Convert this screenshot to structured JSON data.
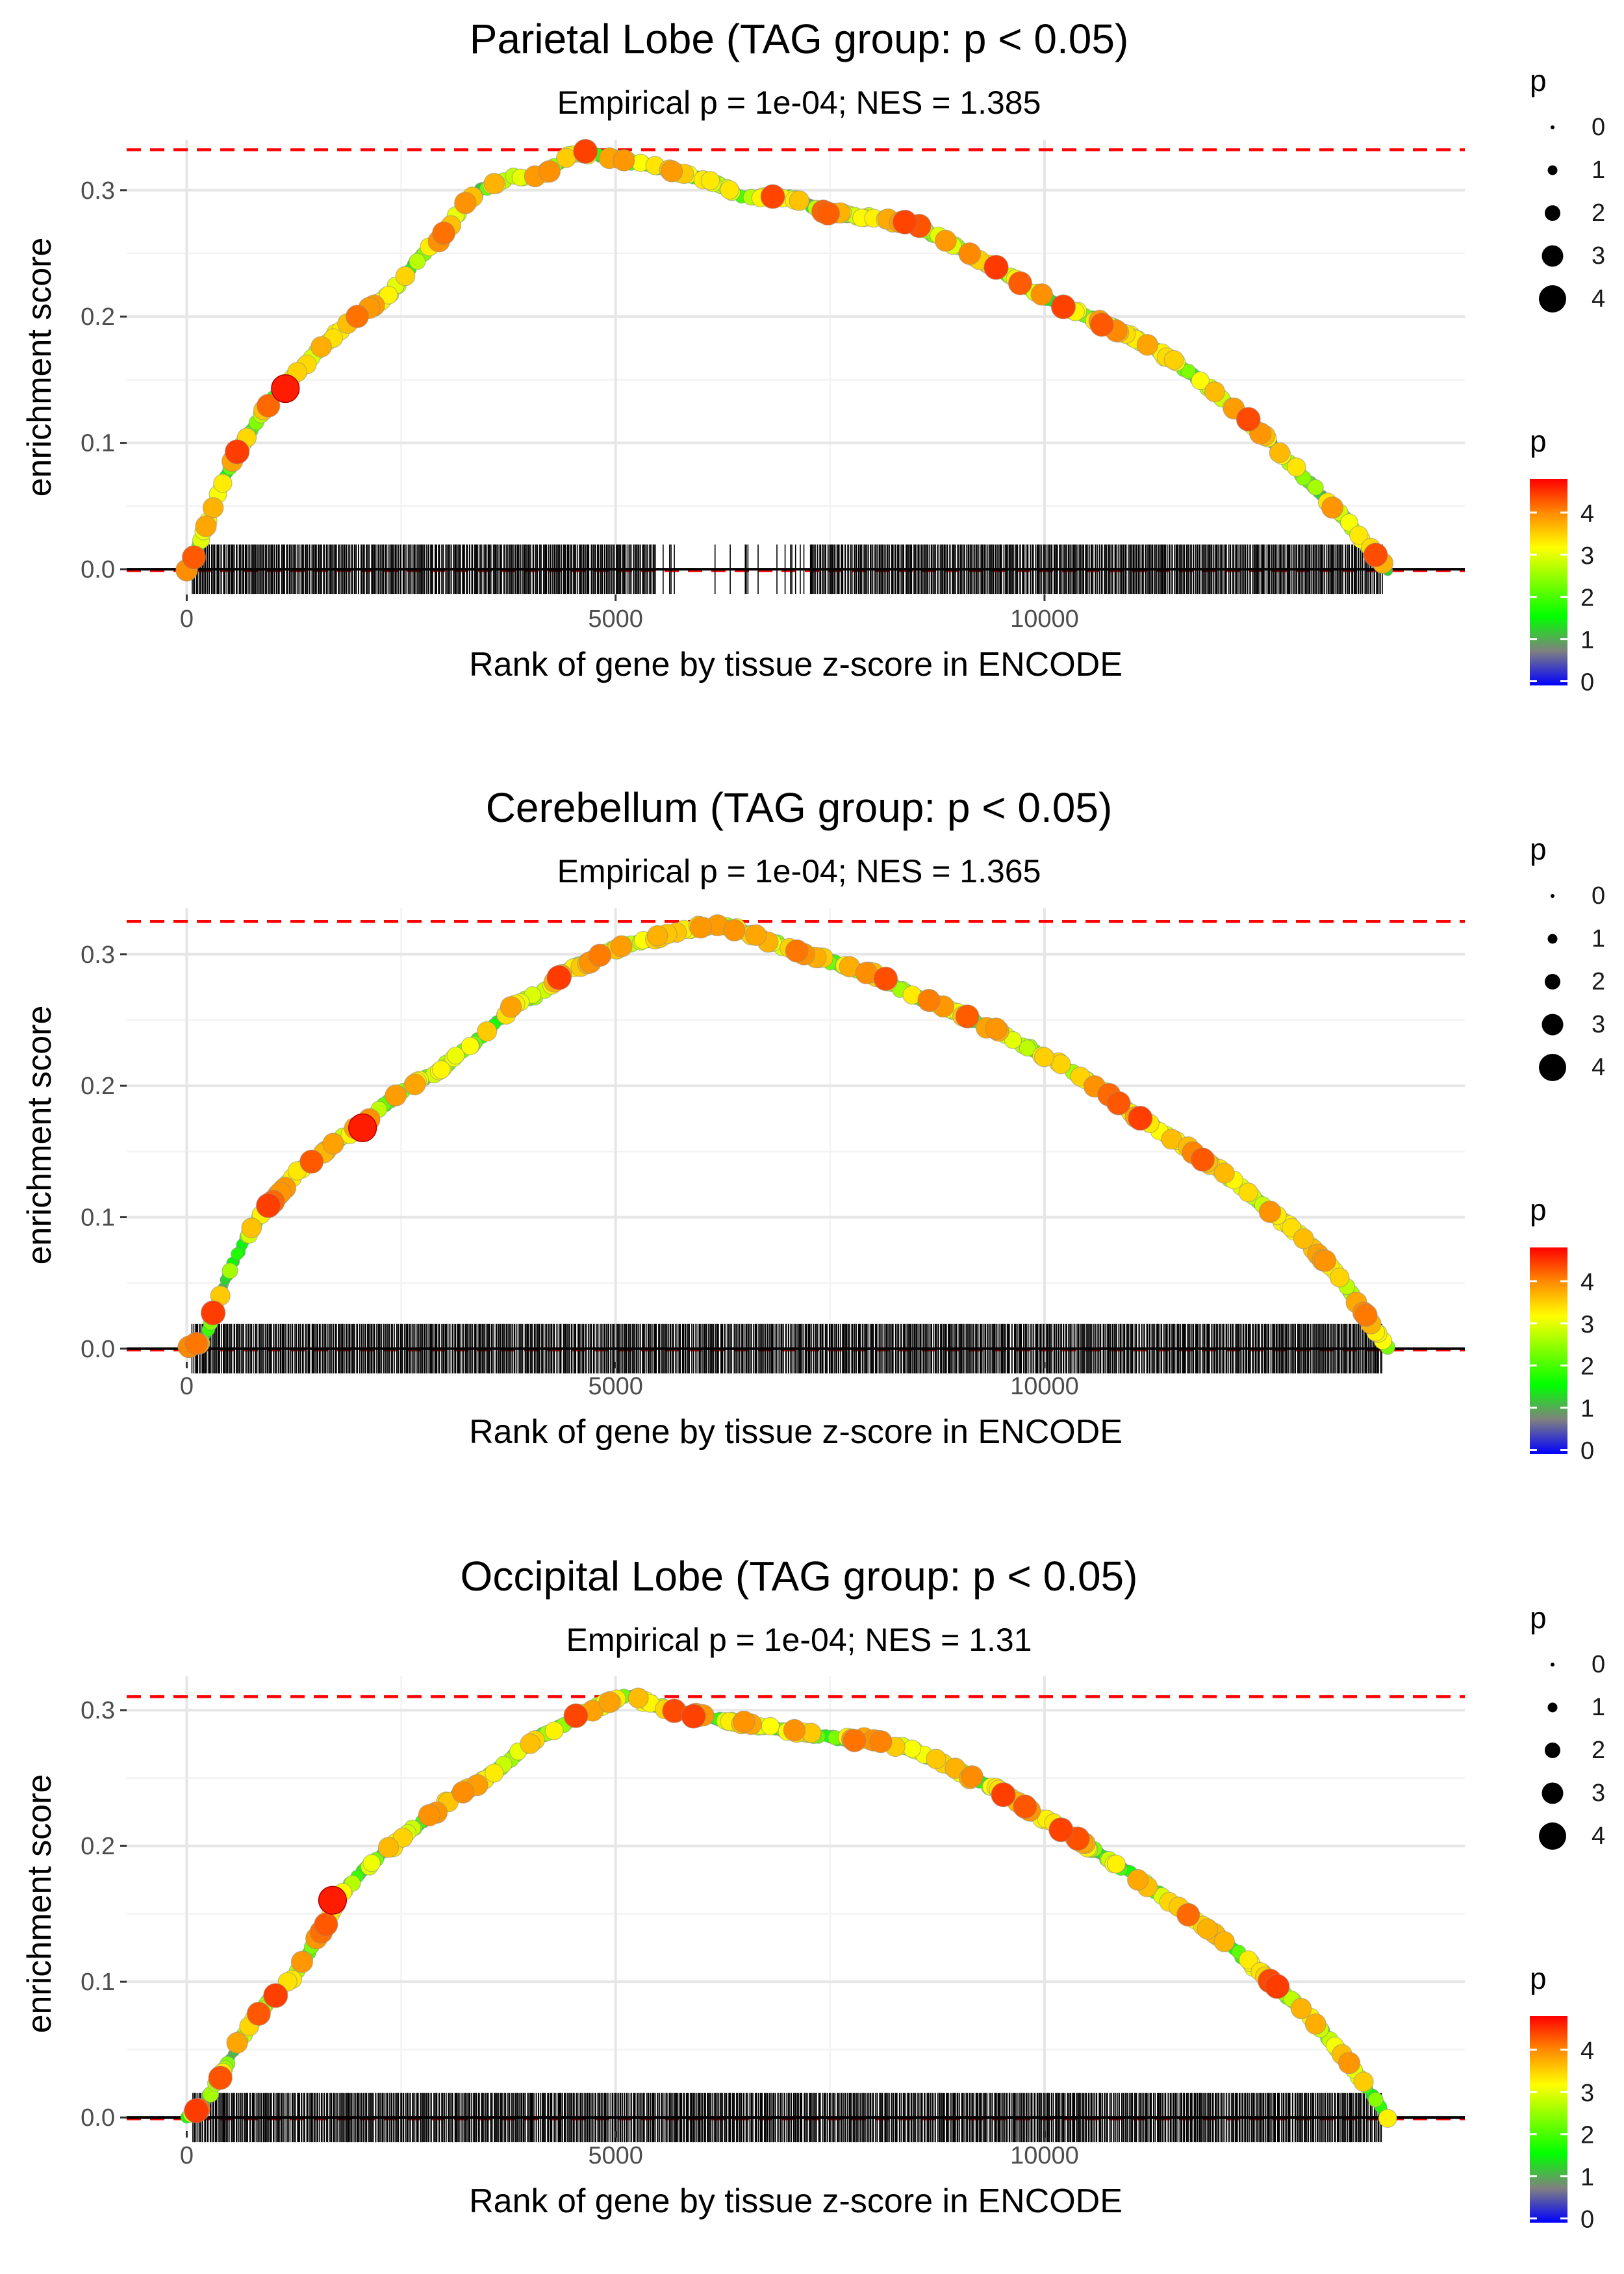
{
  "chart_data": [
    {
      "type": "line",
      "title": "Parietal Lobe (TAG group: p < 0.05)",
      "subtitle": "Empirical p = 1e-04; NES = 1.385",
      "xlabel": "Rank of gene by tissue z-score in ENCODE",
      "ylabel": "enrichment score",
      "x_ticks": [
        0,
        5000,
        10000
      ],
      "x_tick_labels": [
        "0",
        "5000",
        "10000"
      ],
      "y_ticks": [
        0.0,
        0.1,
        0.2,
        0.3
      ],
      "y_tick_labels": [
        "0.0",
        "0.1",
        "0.2",
        "0.3"
      ],
      "xlim": [
        -700,
        14900
      ],
      "ylim": [
        -0.02,
        0.34
      ],
      "max_es": 0.332,
      "x_end": 14000,
      "hit_density": "uniform, with a visible gap around 5500-7200",
      "hit_gaps": [
        [
          5450,
          7250
        ]
      ],
      "curve": {
        "x": [
          0,
          100,
          200,
          400,
          600,
          800,
          1000,
          1200,
          1400,
          1600,
          1800,
          2000,
          2200,
          2400,
          2600,
          2800,
          3000,
          3200,
          3400,
          3600,
          3800,
          4000,
          4200,
          4400,
          4600,
          4800,
          5000,
          5500,
          6000,
          6500,
          7000,
          7500,
          8000,
          8500,
          9000,
          9500,
          10000,
          10500,
          11000,
          11500,
          12000,
          12500,
          13000,
          13500,
          14000
        ],
        "y": [
          0.0,
          0.01,
          0.03,
          0.065,
          0.095,
          0.115,
          0.135,
          0.15,
          0.163,
          0.178,
          0.19,
          0.2,
          0.21,
          0.22,
          0.238,
          0.252,
          0.265,
          0.285,
          0.3,
          0.305,
          0.31,
          0.31,
          0.315,
          0.325,
          0.33,
          0.328,
          0.325,
          0.318,
          0.31,
          0.295,
          0.295,
          0.282,
          0.278,
          0.272,
          0.255,
          0.235,
          0.215,
          0.2,
          0.185,
          0.165,
          0.14,
          0.11,
          0.075,
          0.04,
          0.0
        ]
      },
      "highlight_point": {
        "x": 1150,
        "y": 0.143,
        "p": 4.8
      }
    },
    {
      "type": "line",
      "title": "Cerebellum (TAG group: p < 0.05)",
      "subtitle": "Empirical p = 1e-04; NES = 1.365",
      "xlabel": "Rank of gene by tissue z-score in ENCODE",
      "ylabel": "enrichment score",
      "x_ticks": [
        0,
        5000,
        10000
      ],
      "x_tick_labels": [
        "0",
        "5000",
        "10000"
      ],
      "y_ticks": [
        0.0,
        0.1,
        0.2,
        0.3
      ],
      "y_tick_labels": [
        "0.0",
        "0.1",
        "0.2",
        "0.3"
      ],
      "xlim": [
        -700,
        14900
      ],
      "ylim": [
        -0.01,
        0.335
      ],
      "max_es": 0.325,
      "x_end": 14000,
      "hit_density": "dense and uniform",
      "hit_gaps": [],
      "curve": {
        "x": [
          0,
          200,
          300,
          500,
          700,
          900,
          1100,
          1300,
          1500,
          1700,
          2000,
          2300,
          2600,
          2900,
          3200,
          3500,
          3800,
          4100,
          4400,
          4700,
          5000,
          5300,
          5600,
          5900,
          6200,
          6500,
          7000,
          7500,
          8000,
          8500,
          9000,
          9500,
          10000,
          10500,
          11000,
          11500,
          12000,
          12500,
          13000,
          13500,
          14000
        ],
        "y": [
          0.0,
          0.005,
          0.025,
          0.06,
          0.085,
          0.105,
          0.12,
          0.135,
          0.145,
          0.155,
          0.168,
          0.185,
          0.2,
          0.21,
          0.225,
          0.24,
          0.26,
          0.27,
          0.285,
          0.295,
          0.305,
          0.31,
          0.315,
          0.32,
          0.322,
          0.318,
          0.305,
          0.295,
          0.285,
          0.268,
          0.255,
          0.24,
          0.222,
          0.205,
          0.18,
          0.16,
          0.138,
          0.112,
          0.085,
          0.05,
          0.0
        ]
      },
      "highlight_point": {
        "x": 2050,
        "y": 0.168,
        "p": 4.8
      }
    },
    {
      "type": "line",
      "title": "Occipital Lobe (TAG group: p < 0.05)",
      "subtitle": "Empirical p = 1e-04; NES = 1.31",
      "xlabel": "Rank of gene by tissue z-score in ENCODE",
      "ylabel": "enrichment score",
      "x_ticks": [
        0,
        5000,
        10000
      ],
      "x_tick_labels": [
        "0",
        "5000",
        "10000"
      ],
      "y_ticks": [
        0.0,
        0.1,
        0.2,
        0.3
      ],
      "y_tick_labels": [
        "0.0",
        "0.1",
        "0.2",
        "0.3"
      ],
      "xlim": [
        -700,
        14900
      ],
      "ylim": [
        -0.01,
        0.325
      ],
      "max_es": 0.31,
      "x_end": 14000,
      "hit_density": "dense and uniform",
      "hit_gaps": [],
      "curve": {
        "x": [
          0,
          200,
          400,
          600,
          800,
          1000,
          1200,
          1400,
          1600,
          1750,
          2000,
          2300,
          2600,
          2900,
          3200,
          3500,
          3800,
          4100,
          4400,
          4700,
          5000,
          5200,
          5500,
          6000,
          6500,
          7000,
          7500,
          8000,
          8500,
          9000,
          9500,
          10000,
          10500,
          11000,
          11500,
          12000,
          12500,
          13000,
          13500,
          14000
        ],
        "y": [
          0.0,
          0.01,
          0.03,
          0.055,
          0.075,
          0.088,
          0.1,
          0.12,
          0.14,
          0.16,
          0.178,
          0.195,
          0.21,
          0.225,
          0.24,
          0.25,
          0.265,
          0.28,
          0.29,
          0.3,
          0.308,
          0.31,
          0.302,
          0.295,
          0.29,
          0.285,
          0.28,
          0.278,
          0.27,
          0.255,
          0.24,
          0.22,
          0.2,
          0.18,
          0.158,
          0.135,
          0.108,
          0.08,
          0.045,
          0.0
        ]
      },
      "highlight_point": {
        "x": 1700,
        "y": 0.16,
        "p": 4.8
      }
    }
  ],
  "legend": {
    "size_title": "p",
    "size_labels": [
      "0",
      "1",
      "2",
      "3",
      "4"
    ],
    "color_title": "p",
    "color_labels": [
      "4",
      "3",
      "2",
      "1",
      "0"
    ],
    "color_stops": [
      "#ff0000",
      "#ff8c00",
      "#ffff00",
      "#7fff00",
      "#00ff00",
      "#808080",
      "#0000ff"
    ]
  },
  "colors": {
    "threshold_line": "#ff0000",
    "curve_outline": "#9aa5a0",
    "ticks": "#000000",
    "grid": "#ebebeb"
  }
}
